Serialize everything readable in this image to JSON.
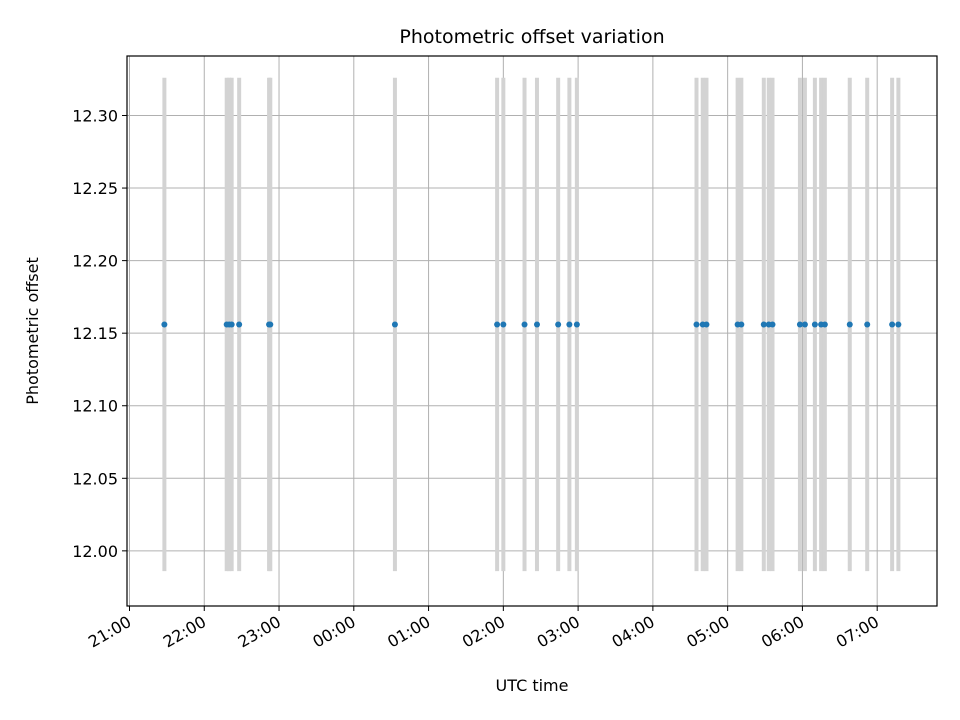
{
  "chart_data": {
    "type": "scatter",
    "title": "Photometric offset variation",
    "xlabel": "UTC time",
    "ylabel": "Photometric offset",
    "grid": true,
    "xlim": [
      "20:58",
      "07:48"
    ],
    "ylim": [
      11.962,
      12.341
    ],
    "x_tick_labels": [
      "21:00",
      "22:00",
      "23:00",
      "00:00",
      "01:00",
      "02:00",
      "03:00",
      "04:00",
      "05:00",
      "06:00",
      "07:00"
    ],
    "y_ticks": [
      12.0,
      12.05,
      12.1,
      12.15,
      12.2,
      12.25,
      12.3
    ],
    "y_tick_labels": [
      "12.00",
      "12.05",
      "12.10",
      "12.15",
      "12.20",
      "12.25",
      "12.30"
    ],
    "point_color": "#1f77b4",
    "errorbar_color": "#d3d3d3",
    "series": [
      {
        "times": [
          "21:28",
          "22:18",
          "22:20",
          "22:22",
          "22:28",
          "22:52",
          "22:53",
          "00:33",
          "01:55",
          "02:00",
          "02:17",
          "02:27",
          "02:44",
          "02:53",
          "02:59",
          "04:35",
          "04:40",
          "04:43",
          "05:08",
          "05:11",
          "05:29",
          "05:33",
          "05:36",
          "05:58",
          "06:02",
          "06:10",
          "06:15",
          "06:18",
          "06:38",
          "06:52",
          "07:12",
          "07:17"
        ],
        "y": [
          12.156,
          12.156,
          12.156,
          12.156,
          12.156,
          12.156,
          12.156,
          12.156,
          12.156,
          12.156,
          12.156,
          12.156,
          12.156,
          12.156,
          12.156,
          12.156,
          12.156,
          12.156,
          12.156,
          12.156,
          12.156,
          12.156,
          12.156,
          12.156,
          12.156,
          12.156,
          12.156,
          12.156,
          12.156,
          12.156,
          12.156,
          12.156
        ],
        "yerr": 0.17
      }
    ]
  }
}
